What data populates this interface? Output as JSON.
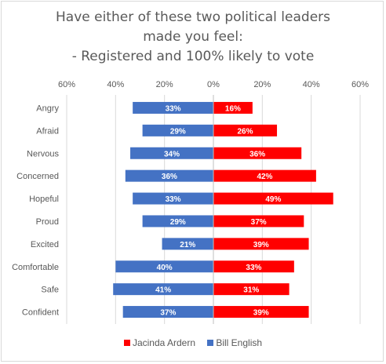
{
  "chart_data": {
    "type": "bar",
    "orientation": "horizontal-diverging",
    "title_lines": [
      "Have either of these two political leaders",
      "made you feel:",
      "- Registered and 100% likely to vote"
    ],
    "x_ticks": [
      "60%",
      "40%",
      "20%",
      "0%",
      "20%",
      "40%",
      "60%"
    ],
    "xlim": [
      -60,
      60
    ],
    "categories": [
      "Angry",
      "Afraid",
      "Nervous",
      "Concerned",
      "Hopeful",
      "Proud",
      "Excited",
      "Comfortable",
      "Safe",
      "Confident"
    ],
    "series": [
      {
        "name": "Jacinda Ardern",
        "color": "#ff0000",
        "side": "right",
        "values": [
          16,
          26,
          36,
          42,
          49,
          37,
          39,
          33,
          31,
          39
        ],
        "labels": [
          "16%",
          "26%",
          "36%",
          "42%",
          "49%",
          "37%",
          "39%",
          "33%",
          "31%",
          "39%"
        ]
      },
      {
        "name": "Bill English",
        "color": "#4472c4",
        "side": "left",
        "values": [
          33,
          29,
          34,
          36,
          33,
          29,
          21,
          40,
          41,
          37
        ],
        "labels": [
          "33%",
          "29%",
          "34%",
          "36%",
          "33%",
          "29%",
          "21%",
          "40%",
          "41%",
          "37%"
        ]
      }
    ],
    "grid": true,
    "legend_position": "bottom"
  }
}
